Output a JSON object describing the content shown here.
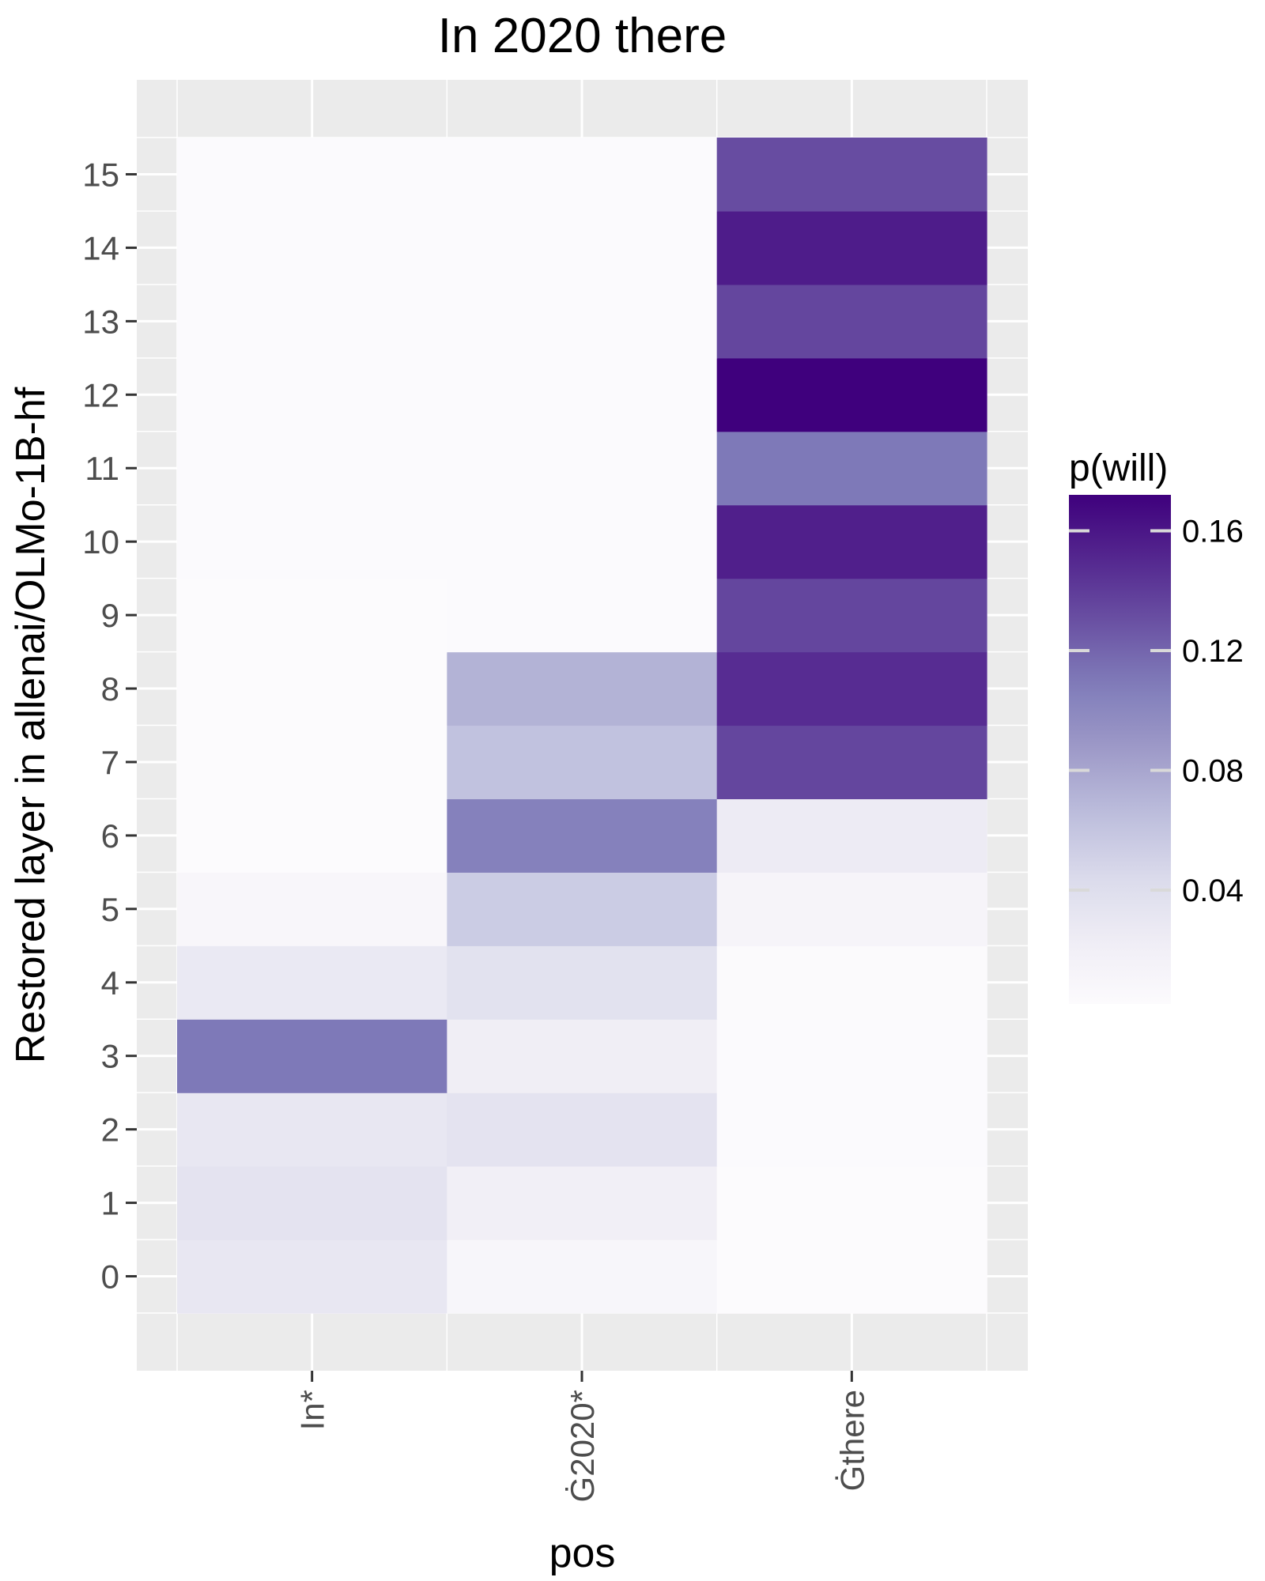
{
  "chart_data": {
    "type": "heatmap",
    "title": "In 2020 there",
    "xlabel": "pos",
    "ylabel": "Restored layer in allenai/OLMo-1B-hf",
    "x_categories": [
      "In*",
      "Ġ2020*",
      "Ġthere"
    ],
    "y_categories": [
      0,
      1,
      2,
      3,
      4,
      5,
      6,
      7,
      8,
      9,
      10,
      11,
      12,
      13,
      14,
      15
    ],
    "values": [
      [
        0.03,
        0.01,
        0.002
      ],
      [
        0.034,
        0.02,
        0.002
      ],
      [
        0.03,
        0.034,
        0.003
      ],
      [
        0.11,
        0.022,
        0.003
      ],
      [
        0.028,
        0.036,
        0.004
      ],
      [
        0.009,
        0.055,
        0.012
      ],
      [
        0.002,
        0.105,
        0.025
      ],
      [
        0.002,
        0.062,
        0.135
      ],
      [
        0.002,
        0.072,
        0.148
      ],
      [
        0.002,
        0.003,
        0.135
      ],
      [
        0.003,
        0.003,
        0.155
      ],
      [
        0.003,
        0.003,
        0.11
      ],
      [
        0.003,
        0.003,
        0.172
      ],
      [
        0.003,
        0.003,
        0.135
      ],
      [
        0.003,
        0.003,
        0.157
      ],
      [
        0.003,
        0.003,
        0.132
      ]
    ],
    "legend": {
      "title": "p(will)",
      "ticks": [
        0.04,
        0.08,
        0.12,
        0.16
      ],
      "tick_labels": [
        "0.04",
        "0.08",
        "0.12",
        "0.16"
      ],
      "range": [
        0.002,
        0.172
      ],
      "placement": "right",
      "color_low": "#fcfbfd",
      "color_high": "#3f007d"
    },
    "grid": true,
    "panel_background": "#ebebeb"
  }
}
